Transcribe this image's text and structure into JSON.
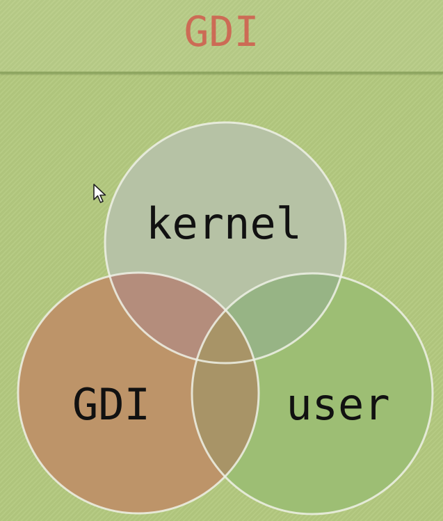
{
  "title": "GDI",
  "venn": {
    "circles": [
      {
        "label": "kernel",
        "color": "#b6c1a8"
      },
      {
        "label": "GDI",
        "color": "#bd9268"
      },
      {
        "label": "user",
        "color": "#9bbd73"
      }
    ],
    "outline_color": "#eef1e6"
  },
  "icons": {
    "cursor": "mouse-pointer-icon"
  }
}
